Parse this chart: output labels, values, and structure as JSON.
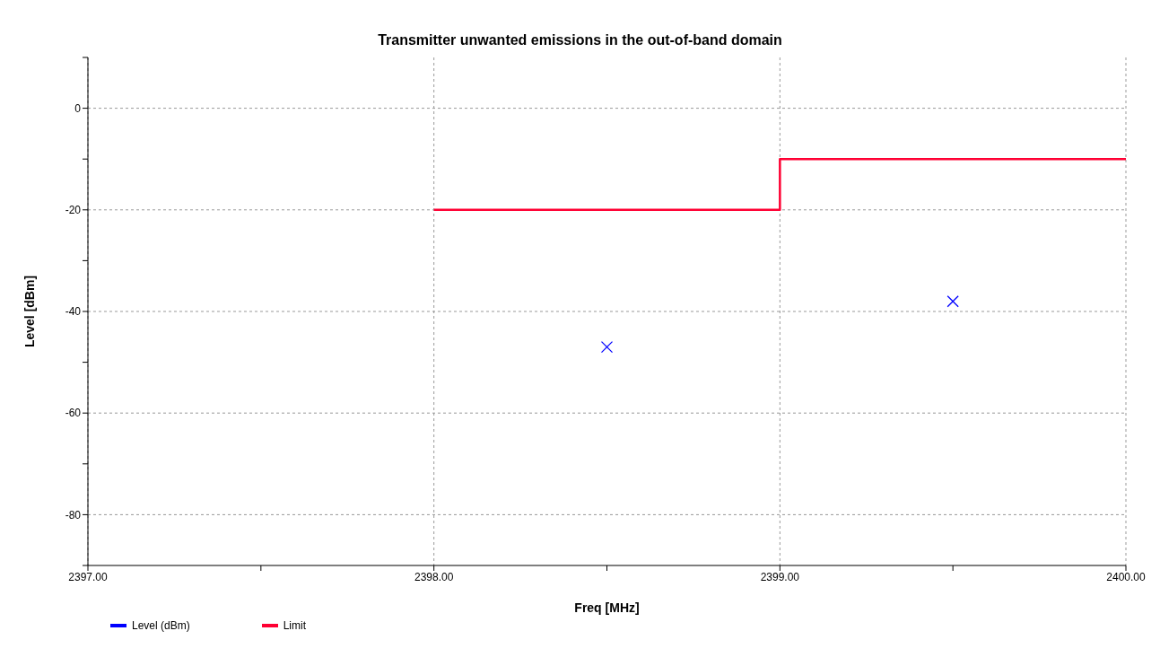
{
  "chart_data": {
    "type": "scatter",
    "title": "Transmitter unwanted emissions in the out-of-band domain",
    "xlabel": "Freq [MHz]",
    "ylabel": "Level [dBm]",
    "xlim": [
      2397,
      2400
    ],
    "xticks": [
      {
        "value": 2397,
        "label": "2397.00"
      },
      {
        "value": 2397.5,
        "label": null
      },
      {
        "value": 2398,
        "label": "2398.00"
      },
      {
        "value": 2398.5,
        "label": null
      },
      {
        "value": 2399,
        "label": "2399.00"
      },
      {
        "value": 2399.5,
        "label": null
      },
      {
        "value": 2400,
        "label": "2400.00"
      }
    ],
    "ylim": [
      -90,
      10
    ],
    "yticks": [
      {
        "value": -90,
        "label": null
      },
      -80,
      {
        "value": -70,
        "label": null
      },
      -60,
      {
        "value": -50,
        "label": null
      },
      -40,
      {
        "value": -30,
        "label": null
      },
      -20,
      {
        "value": -10,
        "label": null
      },
      0,
      {
        "value": 10,
        "label": null
      }
    ],
    "grid": true,
    "legend": "bottom left",
    "series": [
      {
        "name": "Level (dBm)",
        "type": "scatter",
        "color": "#0000ff",
        "marker": "cross",
        "x": [
          2398.5,
          2399.5
        ],
        "values": [
          -47,
          -38
        ]
      },
      {
        "name": "Limit",
        "type": "step",
        "color": "#ff0033",
        "marker": "none",
        "x": [
          2398,
          2399,
          2400
        ],
        "values": [
          -20,
          -10,
          -10
        ]
      }
    ]
  }
}
